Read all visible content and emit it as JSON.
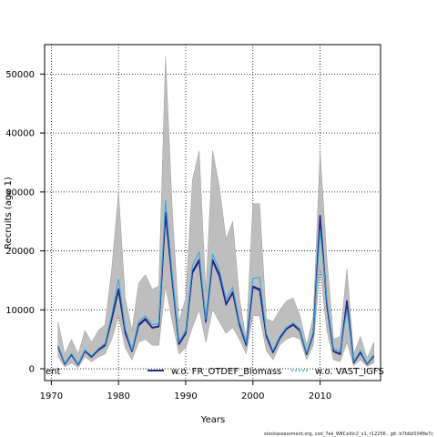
{
  "chart_data": {
    "type": "line",
    "title": "",
    "xlabel": "Years",
    "ylabel": "Recruits (age 1)",
    "xlim": [
      1969,
      2019
    ],
    "ylim": [
      -2000,
      55000
    ],
    "x_ticks": [
      1970,
      1980,
      1990,
      2000,
      2010
    ],
    "y_ticks": [
      0,
      10000,
      20000,
      30000,
      40000,
      50000
    ],
    "grid": true,
    "legend_position": "bottom",
    "x": [
      1971,
      1972,
      1973,
      1974,
      1975,
      1976,
      1977,
      1978,
      1979,
      1980,
      1981,
      1982,
      1983,
      1984,
      1985,
      1986,
      1987,
      1988,
      1989,
      1990,
      1991,
      1992,
      1993,
      1994,
      1995,
      1996,
      1997,
      1998,
      1999,
      2000,
      2001,
      2002,
      2003,
      2004,
      2005,
      2006,
      2007,
      2008,
      2009,
      2010,
      2011,
      2012,
      2013,
      2014,
      2015,
      2016,
      2017,
      2018
    ],
    "band": {
      "name": "",
      "color": "#bebebe",
      "lower": [
        2000,
        300,
        1000,
        200,
        2000,
        1200,
        2000,
        2500,
        5000,
        9000,
        3500,
        1500,
        4500,
        5000,
        4000,
        4000,
        14000,
        8000,
        2500,
        3500,
        7000,
        10000,
        4500,
        10000,
        8000,
        6000,
        7000,
        5000,
        2500,
        9000,
        9000,
        3000,
        1500,
        4000,
        5000,
        5500,
        5000,
        1500,
        4000,
        17000,
        6500,
        1500,
        1200,
        4500,
        500,
        1500,
        400,
        1000
      ],
      "upper": [
        8000,
        2500,
        5000,
        2500,
        6500,
        4500,
        6500,
        7500,
        17000,
        30000,
        12000,
        6500,
        14500,
        16000,
        13500,
        14000,
        53000,
        27000,
        8000,
        12000,
        32000,
        37000,
        13000,
        37000,
        31000,
        22000,
        25000,
        12000,
        5000,
        28000,
        28000,
        8500,
        8000,
        10000,
        11500,
        12000,
        9000,
        4000,
        9000,
        37000,
        19000,
        5000,
        5500,
        17000,
        2500,
        5500,
        1800,
        4500
      ]
    },
    "series": [
      {
        "name": "",
        "color": "#1a1a8a",
        "values": [
          3800,
          800,
          2400,
          700,
          3000,
          2000,
          3200,
          4000,
          8500,
          13500,
          6200,
          3000,
          7500,
          8500,
          7000,
          7200,
          26500,
          15000,
          4200,
          6000,
          16500,
          18500,
          8000,
          18500,
          16000,
          11000,
          13000,
          7500,
          4000,
          14000,
          13500,
          5500,
          2800,
          5200,
          6800,
          7500,
          6500,
          2500,
          6000,
          26000,
          11000,
          3000,
          2500,
          11500,
          1000,
          2800,
          800,
          2200
        ]
      },
      {
        "name": "w.o. FR_OTDEF_Biomass",
        "color": "#2a2a80",
        "values": [
          3700,
          800,
          2400,
          700,
          3000,
          2000,
          3100,
          3900,
          8300,
          13200,
          6000,
          2900,
          7300,
          8300,
          6900,
          7100,
          26000,
          14800,
          4100,
          5900,
          16200,
          18200,
          7900,
          18200,
          15700,
          10800,
          12800,
          7400,
          3900,
          13800,
          13300,
          5400,
          2700,
          5100,
          6700,
          7400,
          6400,
          2400,
          5900,
          25500,
          10800,
          2900,
          2400,
          11200,
          1000,
          2700,
          800,
          2100
        ]
      },
      {
        "name": "w.o. VAST_IGFS",
        "color": "#29a8e0",
        "values": [
          4000,
          900,
          2600,
          800,
          3200,
          2200,
          3400,
          4300,
          9200,
          15200,
          6800,
          3200,
          8000,
          9000,
          7500,
          7700,
          28500,
          16000,
          4600,
          6500,
          17500,
          19800,
          8400,
          19500,
          16800,
          11800,
          13800,
          8000,
          4400,
          15300,
          15500,
          6000,
          3100,
          5500,
          7000,
          7800,
          6700,
          2700,
          6300,
          23500,
          11800,
          3400,
          2900,
          10000,
          1200,
          3100,
          900,
          2400
        ]
      }
    ],
    "legend": [
      {
        "label": "ent"
      },
      {
        "label": "w.o. FR_OTDEF_Biomass"
      },
      {
        "label": "w.o. VAST_IGFS"
      }
    ]
  },
  "footer": {
    "note": "stockassessment.org, cod_7ek_WKCeltic2_v1, r12256 , git: b7bbb5048e7c"
  }
}
